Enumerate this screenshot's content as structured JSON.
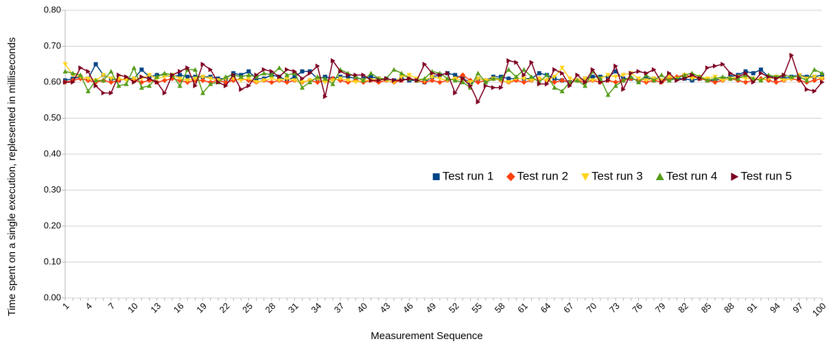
{
  "chart_data": {
    "type": "line",
    "x_label": "Measurement Sequence",
    "y_label": "Time spent on a single execution, replesented in milliseconds",
    "categories": [
      "1",
      null,
      null,
      "4",
      null,
      null,
      "7",
      null,
      null,
      "10",
      null,
      null,
      "13",
      null,
      null,
      "16",
      null,
      null,
      "19",
      null,
      null,
      "22",
      null,
      null,
      "25",
      null,
      null,
      "28",
      null,
      null,
      "31",
      null,
      null,
      "34",
      null,
      null,
      "37",
      null,
      null,
      "40",
      null,
      null,
      "43",
      null,
      null,
      "46",
      null,
      null,
      "49",
      null,
      null,
      "52",
      null,
      null,
      "55",
      null,
      null,
      "58",
      null,
      null,
      "61",
      null,
      null,
      "64",
      null,
      null,
      "67",
      null,
      null,
      "70",
      null,
      null,
      "73",
      null,
      null,
      "76",
      null,
      null,
      "79",
      null,
      null,
      "82",
      null,
      null,
      "85",
      null,
      null,
      "88",
      null,
      null,
      "91",
      null,
      null,
      "94",
      null,
      null,
      "97",
      null,
      null,
      "100"
    ],
    "ylim": [
      0,
      0.8
    ],
    "yticks": [
      {
        "value": 0,
        "label": "0.00"
      },
      {
        "value": 0.1,
        "label": "0.10"
      },
      {
        "value": 0.2,
        "label": "0.20"
      },
      {
        "value": 0.3,
        "label": "0.30"
      },
      {
        "value": 0.4,
        "label": "0.40"
      },
      {
        "value": 0.5,
        "label": "0.50"
      },
      {
        "value": 0.6,
        "label": "0.60"
      },
      {
        "value": 0.7,
        "label": "0.70"
      },
      {
        "value": 0.8,
        "label": "0.80"
      }
    ],
    "grid": true,
    "legend": "center-right",
    "series": [
      {
        "name": "Test run 1",
        "color": "#004586",
        "marker": "square",
        "values": [
          0.605,
          0.61,
          0.615,
          0.61,
          0.65,
          0.62,
          0.61,
          0.605,
          0.61,
          0.61,
          0.635,
          0.615,
          0.62,
          0.62,
          0.615,
          0.62,
          0.615,
          0.615,
          0.615,
          0.615,
          0.61,
          0.61,
          0.625,
          0.62,
          0.63,
          0.61,
          0.61,
          0.62,
          0.615,
          0.605,
          0.615,
          0.63,
          0.63,
          0.61,
          0.615,
          0.61,
          0.615,
          0.615,
          0.61,
          0.61,
          0.615,
          0.61,
          0.61,
          0.605,
          0.61,
          0.605,
          0.605,
          0.6,
          0.615,
          0.62,
          0.625,
          0.62,
          0.61,
          0.6,
          0.61,
          0.605,
          0.615,
          0.615,
          0.61,
          0.61,
          0.61,
          0.61,
          0.625,
          0.62,
          0.61,
          0.605,
          0.6,
          0.605,
          0.61,
          0.615,
          0.615,
          0.615,
          0.63,
          0.61,
          0.61,
          0.605,
          0.61,
          0.61,
          0.605,
          0.61,
          0.61,
          0.61,
          0.605,
          0.61,
          0.605,
          0.605,
          0.61,
          0.615,
          0.62,
          0.63,
          0.625,
          0.635,
          0.615,
          0.615,
          0.61,
          0.615,
          0.62,
          0.615,
          0.615,
          0.62
        ]
      },
      {
        "name": "Test run 2",
        "color": "#ff420e",
        "marker": "diamond",
        "values": [
          0.6,
          0.605,
          0.61,
          0.605,
          0.6,
          0.605,
          0.6,
          0.605,
          0.61,
          0.605,
          0.6,
          0.605,
          0.6,
          0.605,
          0.61,
          0.605,
          0.6,
          0.605,
          0.605,
          0.6,
          0.605,
          0.6,
          0.605,
          0.61,
          0.605,
          0.6,
          0.605,
          0.6,
          0.605,
          0.6,
          0.605,
          0.6,
          0.605,
          0.6,
          0.605,
          0.61,
          0.605,
          0.6,
          0.605,
          0.6,
          0.605,
          0.6,
          0.605,
          0.6,
          0.605,
          0.61,
          0.605,
          0.6,
          0.605,
          0.6,
          0.605,
          0.61,
          0.62,
          0.605,
          0.6,
          0.605,
          0.61,
          0.605,
          0.6,
          0.605,
          0.6,
          0.605,
          0.61,
          0.605,
          0.6,
          0.605,
          0.6,
          0.605,
          0.6,
          0.605,
          0.6,
          0.605,
          0.6,
          0.605,
          0.61,
          0.605,
          0.6,
          0.605,
          0.6,
          0.61,
          0.615,
          0.62,
          0.615,
          0.61,
          0.605,
          0.6,
          0.605,
          0.61,
          0.605,
          0.6,
          0.605,
          0.61,
          0.605,
          0.6,
          0.605,
          0.61,
          0.605,
          0.6,
          0.605,
          0.61
        ]
      },
      {
        "name": "Test run 3",
        "color": "#ffd320",
        "marker": "triangle-down",
        "values": [
          0.65,
          0.62,
          0.615,
          0.61,
          0.605,
          0.62,
          0.61,
          0.61,
          0.605,
          0.61,
          0.61,
          0.62,
          0.61,
          0.615,
          0.62,
          0.61,
          0.605,
          0.61,
          0.615,
          0.61,
          0.605,
          0.61,
          0.61,
          0.605,
          0.61,
          0.6,
          0.605,
          0.61,
          0.605,
          0.61,
          0.605,
          0.6,
          0.605,
          0.61,
          0.6,
          0.605,
          0.61,
          0.605,
          0.6,
          0.605,
          0.605,
          0.61,
          0.605,
          0.6,
          0.615,
          0.62,
          0.61,
          0.605,
          0.615,
          0.61,
          0.605,
          0.61,
          0.605,
          0.6,
          0.61,
          0.605,
          0.61,
          0.605,
          0.6,
          0.61,
          0.61,
          0.605,
          0.61,
          0.605,
          0.615,
          0.64,
          0.61,
          0.605,
          0.61,
          0.605,
          0.61,
          0.62,
          0.615,
          0.62,
          0.625,
          0.61,
          0.605,
          0.61,
          0.605,
          0.615,
          0.61,
          0.62,
          0.61,
          0.615,
          0.61,
          0.615,
          0.605,
          0.61,
          0.615,
          0.61,
          0.61,
          0.605,
          0.61,
          0.615,
          0.605,
          0.61,
          0.62,
          0.61,
          0.615,
          0.61
        ]
      },
      {
        "name": "Test run 4",
        "color": "#579d1c",
        "marker": "triangle-up",
        "values": [
          0.63,
          0.625,
          0.62,
          0.575,
          0.605,
          0.605,
          0.63,
          0.59,
          0.595,
          0.64,
          0.585,
          0.59,
          0.615,
          0.625,
          0.62,
          0.59,
          0.635,
          0.635,
          0.57,
          0.595,
          0.6,
          0.615,
          0.62,
          0.615,
          0.62,
          0.615,
          0.625,
          0.62,
          0.64,
          0.62,
          0.625,
          0.585,
          0.6,
          0.615,
          0.61,
          0.595,
          0.635,
          0.625,
          0.615,
          0.605,
          0.625,
          0.61,
          0.61,
          0.635,
          0.625,
          0.61,
          0.605,
          0.61,
          0.63,
          0.625,
          0.61,
          0.605,
          0.6,
          0.585,
          0.625,
          0.6,
          0.61,
          0.61,
          0.635,
          0.615,
          0.635,
          0.615,
          0.6,
          0.62,
          0.585,
          0.575,
          0.6,
          0.605,
          0.59,
          0.63,
          0.61,
          0.565,
          0.59,
          0.605,
          0.615,
          0.6,
          0.62,
          0.605,
          0.62,
          0.605,
          0.61,
          0.62,
          0.625,
          0.615,
          0.605,
          0.61,
          0.615,
          0.61,
          0.61,
          0.62,
          0.61,
          0.605,
          0.62,
          0.615,
          0.62,
          0.615,
          0.615,
          0.605,
          0.635,
          0.625
        ]
      },
      {
        "name": "Test run 5",
        "color": "#7e0021",
        "marker": "triangle-right",
        "values": [
          0.6,
          0.6,
          0.64,
          0.63,
          0.59,
          0.57,
          0.57,
          0.62,
          0.615,
          0.6,
          0.615,
          0.61,
          0.6,
          0.57,
          0.62,
          0.63,
          0.64,
          0.59,
          0.65,
          0.635,
          0.6,
          0.59,
          0.62,
          0.58,
          0.59,
          0.62,
          0.635,
          0.63,
          0.615,
          0.635,
          0.63,
          0.61,
          0.625,
          0.645,
          0.56,
          0.66,
          0.63,
          0.62,
          0.62,
          0.62,
          0.605,
          0.605,
          0.61,
          0.605,
          0.605,
          0.61,
          0.605,
          0.65,
          0.625,
          0.62,
          0.625,
          0.57,
          0.61,
          0.59,
          0.545,
          0.59,
          0.585,
          0.585,
          0.66,
          0.655,
          0.62,
          0.655,
          0.595,
          0.595,
          0.635,
          0.625,
          0.59,
          0.62,
          0.6,
          0.635,
          0.6,
          0.605,
          0.645,
          0.58,
          0.625,
          0.63,
          0.625,
          0.635,
          0.6,
          0.625,
          0.605,
          0.61,
          0.62,
          0.61,
          0.64,
          0.645,
          0.65,
          0.625,
          0.615,
          0.625,
          0.6,
          0.625,
          0.615,
          0.61,
          0.62,
          0.675,
          0.61,
          0.58,
          0.575,
          0.6
        ]
      }
    ]
  }
}
